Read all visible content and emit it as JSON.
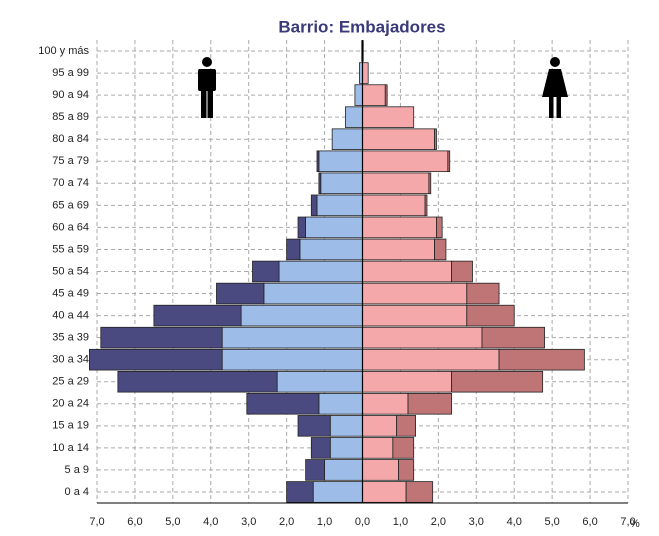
{
  "chart_data": {
    "type": "pyramid",
    "title": "Barrio: Embajadores",
    "xlabel": "%",
    "categories": [
      "0 a 4",
      "5 a 9",
      "10 a 14",
      "15 a 19",
      "20 a 24",
      "25 a 29",
      "30 a 34",
      "35 a 39",
      "40 a 44",
      "45 a 49",
      "50 a 54",
      "55 a 59",
      "60 a 64",
      "65 a 69",
      "70 a 74",
      "75 a 79",
      "80 a 84",
      "85 a 89",
      "90 a 94",
      "95 a 99",
      "100 y más"
    ],
    "series": [
      {
        "color": "#9dbde8",
        "side": "left",
        "values": [
          1.3,
          1.0,
          0.85,
          0.85,
          1.15,
          2.25,
          3.7,
          3.7,
          3.2,
          2.6,
          2.2,
          1.65,
          1.5,
          1.2,
          1.1,
          1.15,
          0.8,
          0.45,
          0.2,
          0.08,
          0.02
        ]
      },
      {
        "color": "#4b4a80",
        "side": "left",
        "values": [
          0.7,
          0.5,
          0.5,
          0.85,
          1.9,
          4.2,
          3.5,
          3.2,
          2.3,
          1.25,
          0.7,
          0.35,
          0.2,
          0.15,
          0.05,
          0.05,
          0,
          0,
          0,
          0,
          0
        ]
      },
      {
        "color": "#f5a8aa",
        "side": "right",
        "values": [
          1.15,
          0.95,
          0.8,
          0.9,
          1.2,
          2.35,
          3.6,
          3.15,
          2.75,
          2.75,
          2.35,
          1.9,
          1.95,
          1.65,
          1.75,
          2.25,
          1.9,
          1.35,
          0.6,
          0.15,
          0.02
        ]
      },
      {
        "color": "#bf7476",
        "side": "right",
        "values": [
          0.7,
          0.4,
          0.55,
          0.5,
          1.15,
          2.4,
          2.25,
          1.65,
          1.25,
          0.85,
          0.55,
          0.3,
          0.15,
          0.05,
          0.05,
          0.05,
          0.05,
          0,
          0.05,
          0,
          0
        ]
      }
    ],
    "xlim": [
      -7,
      7
    ],
    "xticks": [
      {
        "value": -7,
        "label": "7,0"
      },
      {
        "value": -6,
        "label": "6,0"
      },
      {
        "value": -5,
        "label": "5,0"
      },
      {
        "value": -4,
        "label": "4,0"
      },
      {
        "value": -3,
        "label": "3,0"
      },
      {
        "value": -2,
        "label": "2,0"
      },
      {
        "value": -1,
        "label": "1,0"
      },
      {
        "value": 0,
        "label": "0,0"
      },
      {
        "value": 1,
        "label": "1,0"
      },
      {
        "value": 2,
        "label": "2,0"
      },
      {
        "value": 3,
        "label": "3,0"
      },
      {
        "value": 4,
        "label": "4,0"
      },
      {
        "value": 5,
        "label": "5,0"
      },
      {
        "value": 6,
        "label": "6,0"
      },
      {
        "value": 7,
        "label": "7,0"
      }
    ],
    "grid": true
  }
}
